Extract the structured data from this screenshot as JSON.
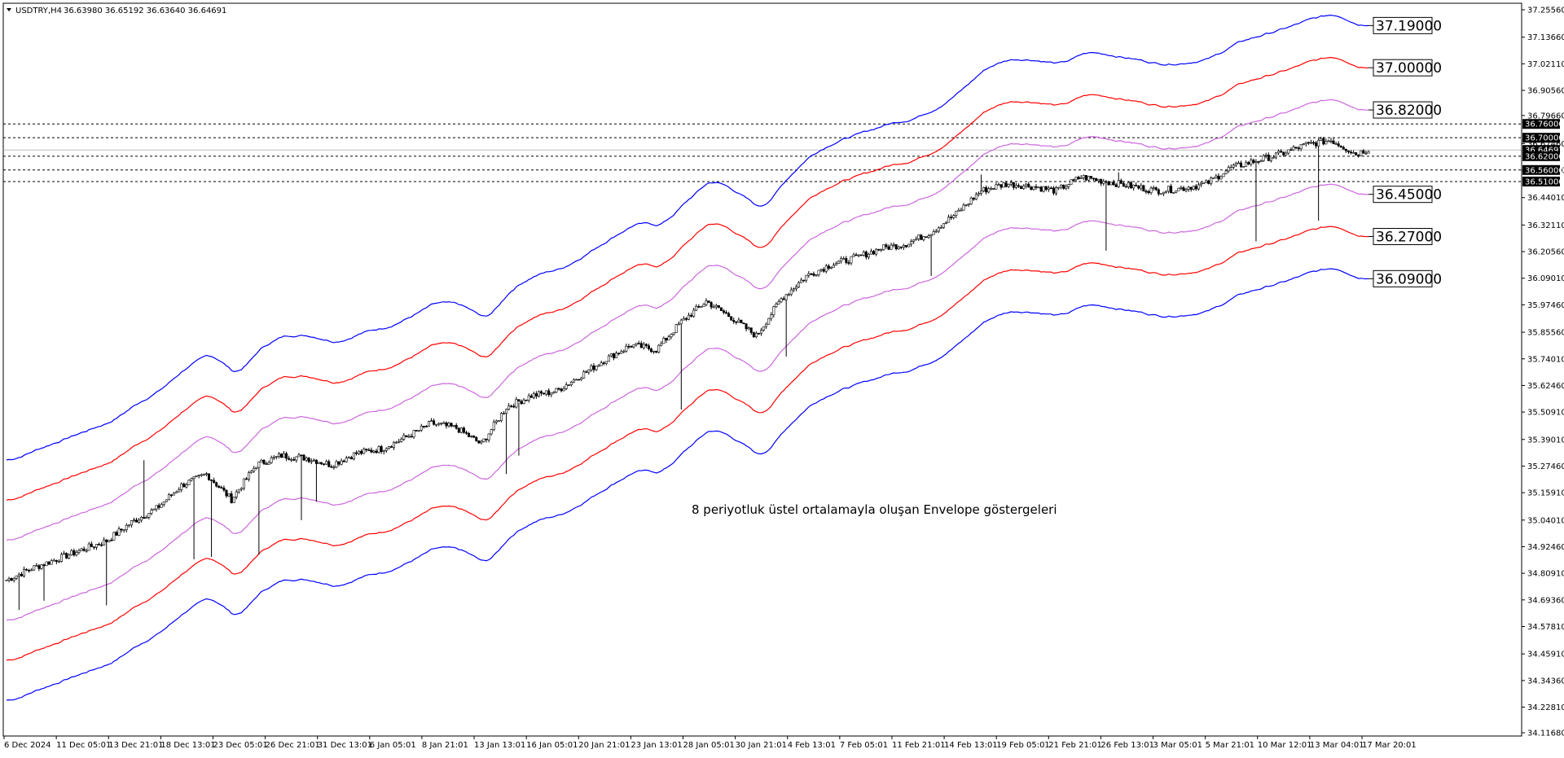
{
  "header": {
    "symbol_text": "USDTRY,H4",
    "ohlc_text": "36.63980 36.65192 36.63640 36.64691"
  },
  "annotation": {
    "text": "8 periyotluk üstel ortalamayla oluşan Envelope göstergeleri"
  },
  "colors": {
    "outer_envelope": "#0000ff",
    "middle_envelope": "#ff0000",
    "inner_envelope": "#cc66dd",
    "candles": "#000000",
    "grid": "#000000",
    "axis_label_bg": "#000000"
  },
  "chart_data": {
    "type": "candlestick",
    "symbol": "USDTRY",
    "timeframe": "H4",
    "ylim": [
      34.1168,
      37.2556
    ],
    "y_ticks": [
      "37.25560",
      "37.13660",
      "37.02110",
      "36.90560",
      "36.79660",
      "36.67460",
      "36.55910",
      "36.44010",
      "36.32110",
      "36.20560",
      "36.09010",
      "35.97460",
      "35.85560",
      "35.74010",
      "35.62460",
      "35.50910",
      "35.39010",
      "35.27460",
      "35.15910",
      "35.04010",
      "34.92460",
      "34.80910",
      "34.69360",
      "34.57810",
      "34.45910",
      "34.34360",
      "34.22810",
      "34.11680"
    ],
    "x_ticks": [
      "6 Dec 2024",
      "11 Dec 05:01",
      "13 Dec 21:01",
      "18 Dec 13:01",
      "23 Dec 05:01",
      "26 Dec 21:01",
      "31 Dec 13:01",
      "6 Jan 05:01",
      "8 Jan 21:01",
      "13 Jan 13:01",
      "16 Jan 05:01",
      "20 Jan 21:01",
      "23 Jan 13:01",
      "28 Jan 05:01",
      "30 Jan 21:01",
      "4 Feb 13:01",
      "7 Feb 05:01",
      "11 Feb 21:01",
      "14 Feb 13:01",
      "19 Feb 05:01",
      "21 Feb 21:01",
      "26 Feb 13:01",
      "3 Mar 05:01",
      "5 Mar 21:01",
      "10 Mar 12:01",
      "13 Mar 04:01",
      "17 Mar 20:01"
    ],
    "horizontal_levels": [
      "36.76000",
      "36.70000",
      "36.62000",
      "36.56000",
      "36.51000"
    ],
    "current_price": "36.64691",
    "right_labels": [
      "36.76000",
      "36.70000",
      "36.64691",
      "36.62000",
      "36.56000",
      "36.51000"
    ],
    "envelope_labels": [
      "37.19000",
      "37.00000",
      "36.82000",
      "36.45000",
      "36.27000",
      "36.09000"
    ],
    "price_path": {
      "x_index": [
        0,
        10,
        20,
        30,
        40,
        50,
        60,
        70,
        80,
        90,
        100,
        110,
        120,
        130,
        140,
        150,
        160,
        170,
        180,
        190,
        200,
        210,
        220,
        230,
        240,
        250,
        260,
        270,
        280,
        290,
        300,
        310,
        320,
        330,
        340,
        350,
        360,
        370,
        380,
        390,
        400,
        410,
        420,
        430,
        440,
        450,
        460,
        470,
        480,
        490,
        500,
        510,
        520,
        530,
        540,
        545
      ],
      "close": [
        34.78,
        34.83,
        34.87,
        34.91,
        34.95,
        35.03,
        35.09,
        35.19,
        35.24,
        35.13,
        35.28,
        35.32,
        35.31,
        35.28,
        35.33,
        35.35,
        35.4,
        35.46,
        35.44,
        35.37,
        35.53,
        35.58,
        35.6,
        35.67,
        35.74,
        35.8,
        35.78,
        35.9,
        35.99,
        35.92,
        35.84,
        36.0,
        36.1,
        36.15,
        36.18,
        36.22,
        36.24,
        36.29,
        36.37,
        36.47,
        36.5,
        36.49,
        36.47,
        36.53,
        36.51,
        36.49,
        36.47,
        36.48,
        36.5,
        36.57,
        36.6,
        36.63,
        36.67,
        36.69,
        36.63,
        36.65
      ],
      "wick_low": [
        {
          "i": 5,
          "low": 34.65
        },
        {
          "i": 15,
          "low": 34.69
        },
        {
          "i": 40,
          "low": 34.67
        },
        {
          "i": 75,
          "low": 34.87
        },
        {
          "i": 82,
          "low": 34.88
        },
        {
          "i": 101,
          "low": 34.89
        },
        {
          "i": 118,
          "low": 35.04
        },
        {
          "i": 124,
          "low": 35.12
        },
        {
          "i": 200,
          "low": 35.24
        },
        {
          "i": 205,
          "low": 35.32
        },
        {
          "i": 270,
          "low": 35.52
        },
        {
          "i": 312,
          "low": 35.75
        },
        {
          "i": 370,
          "low": 36.1
        },
        {
          "i": 440,
          "low": 36.21
        },
        {
          "i": 500,
          "low": 36.25
        },
        {
          "i": 525,
          "low": 36.34
        }
      ],
      "wick_high": [
        {
          "i": 55,
          "high": 35.3
        },
        {
          "i": 205,
          "high": 35.55
        },
        {
          "i": 390,
          "high": 36.54
        },
        {
          "i": 445,
          "high": 36.55
        },
        {
          "i": 530,
          "high": 36.7
        }
      ]
    },
    "series": [
      {
        "name": "",
        "color": "#0000ff",
        "offset_pct": 1.5
      },
      {
        "name": "",
        "color": "#ff0000",
        "offset_pct": 1.0
      },
      {
        "name": "",
        "color": "#cc66dd",
        "offset_pct": 0.5
      },
      {
        "name": "",
        "color": "#cc66dd",
        "offset_pct": -0.5
      },
      {
        "name": "",
        "color": "#ff0000",
        "offset_pct": -1.0
      },
      {
        "name": "",
        "color": "#0000ff",
        "offset_pct": -1.5
      }
    ]
  }
}
